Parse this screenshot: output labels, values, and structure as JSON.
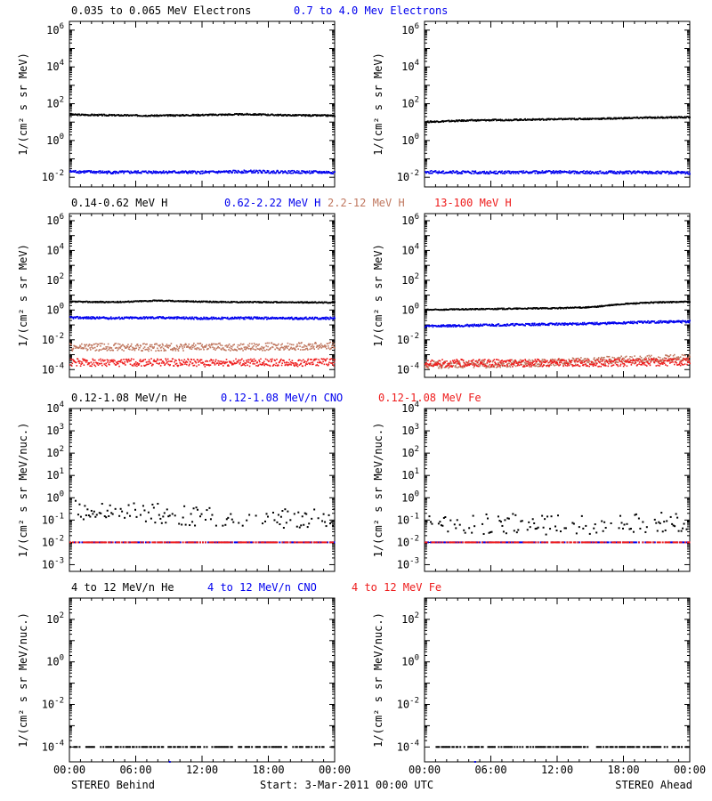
{
  "colors": {
    "black": "#000000",
    "blue": "#0000ee",
    "tan": "#c07860",
    "red": "#ee1c1c"
  },
  "footer": {
    "left": "STEREO Behind",
    "center": "Start:  3-Mar-2011 00:00 UTC",
    "right": "STEREO Ahead"
  },
  "chart_data": [
    {
      "type": "scatter",
      "panel": "electrons-behind",
      "ylabel": "1/(cm² s sr MeV)",
      "ylim": [
        0.003,
        3000000
      ],
      "log": true,
      "yticks": [
        "10^-2",
        "10^0",
        "10^2",
        "10^4",
        "10^6"
      ],
      "xticks": [
        "00:00",
        "06:00",
        "12:00",
        "18:00",
        "00:00"
      ],
      "show_xticks": false,
      "series": [
        {
          "name": "0.035 to 0.065 MeV Electrons",
          "color": "black",
          "x": [
            0,
            4,
            8,
            12,
            16,
            20,
            24
          ],
          "y": [
            25,
            23,
            22,
            24,
            26,
            23,
            22
          ]
        },
        {
          "name": "0.7 to 4.0 Mev Electrons",
          "color": "blue",
          "x": [
            0,
            4,
            8,
            12,
            16,
            20,
            24
          ],
          "y": [
            0.02,
            0.018,
            0.019,
            0.018,
            0.02,
            0.019,
            0.018
          ]
        }
      ]
    },
    {
      "type": "scatter",
      "panel": "electrons-ahead",
      "ylabel": "1/(cm² s sr MeV)",
      "ylim": [
        0.003,
        3000000
      ],
      "log": true,
      "yticks": [
        "10^-2",
        "10^0",
        "10^2",
        "10^4",
        "10^6"
      ],
      "xticks": [
        "00:00",
        "06:00",
        "12:00",
        "18:00",
        "00:00"
      ],
      "show_xticks": false,
      "series": [
        {
          "name": "",
          "color": "black",
          "x": [
            0,
            4,
            8,
            12,
            16,
            20,
            24
          ],
          "y": [
            10,
            12,
            13,
            14,
            15,
            17,
            18
          ]
        },
        {
          "name": "",
          "color": "blue",
          "x": [
            0,
            4,
            8,
            12,
            16,
            20,
            24
          ],
          "y": [
            0.019,
            0.018,
            0.018,
            0.019,
            0.018,
            0.018,
            0.017
          ]
        }
      ]
    },
    {
      "type": "scatter",
      "panel": "protons-behind",
      "ylabel": "1/(cm² s sr MeV)",
      "ylim": [
        3e-05,
        3000000
      ],
      "log": true,
      "yticks": [
        "10^-4",
        "10^-2",
        "10^0",
        "10^2",
        "10^4",
        "10^6"
      ],
      "xticks": [
        "00:00",
        "06:00",
        "12:00",
        "18:00",
        "00:00"
      ],
      "show_xticks": false,
      "series": [
        {
          "name": "0.14-0.62 MeV H",
          "color": "black",
          "x": [
            0,
            4,
            8,
            12,
            16,
            20,
            24
          ],
          "y": [
            3.5,
            3.3,
            4.2,
            3.5,
            3.3,
            3.2,
            3.1
          ]
        },
        {
          "name": "0.62-2.22 MeV H",
          "color": "blue",
          "x": [
            0,
            4,
            8,
            12,
            16,
            20,
            24
          ],
          "y": [
            0.3,
            0.28,
            0.3,
            0.27,
            0.28,
            0.27,
            0.27
          ]
        },
        {
          "name": "2.2-12 MeV H",
          "color": "tan",
          "x": [
            0,
            4,
            8,
            12,
            16,
            20,
            24
          ],
          "y": [
            0.003,
            0.0032,
            0.003,
            0.0033,
            0.0032,
            0.0035,
            0.004
          ]
        },
        {
          "name": "13-100 MeV H",
          "color": "red",
          "x": [
            0,
            4,
            8,
            12,
            16,
            20,
            24
          ],
          "y": [
            0.0003,
            0.00028,
            0.0003,
            0.00027,
            0.00029,
            0.00028,
            0.0003
          ]
        }
      ]
    },
    {
      "type": "scatter",
      "panel": "protons-ahead",
      "ylabel": "1/(cm² s sr MeV)",
      "ylim": [
        3e-05,
        3000000
      ],
      "log": true,
      "yticks": [
        "10^-4",
        "10^-2",
        "10^0",
        "10^2",
        "10^4",
        "10^6"
      ],
      "xticks": [
        "00:00",
        "06:00",
        "12:00",
        "18:00",
        "00:00"
      ],
      "show_xticks": false,
      "series": [
        {
          "name": "",
          "color": "black",
          "x": [
            0,
            4,
            8,
            12,
            15,
            18,
            21,
            24
          ],
          "y": [
            1.0,
            1.1,
            1.2,
            1.3,
            1.5,
            2.5,
            3.2,
            3.5
          ]
        },
        {
          "name": "",
          "color": "blue",
          "x": [
            0,
            4,
            8,
            12,
            16,
            20,
            24
          ],
          "y": [
            0.08,
            0.09,
            0.1,
            0.11,
            0.12,
            0.15,
            0.16
          ]
        },
        {
          "name": "",
          "color": "tan",
          "x": [
            0,
            4,
            8,
            12,
            16,
            20,
            24
          ],
          "y": [
            0.0002,
            0.00022,
            0.00025,
            0.0003,
            0.0004,
            0.0005,
            0.0006
          ]
        },
        {
          "name": "",
          "color": "red",
          "x": [
            0,
            4,
            8,
            12,
            16,
            20,
            24
          ],
          "y": [
            0.00025,
            0.00027,
            0.00026,
            0.00028,
            0.00027,
            0.0003,
            0.00032
          ]
        }
      ]
    },
    {
      "type": "scatter",
      "panel": "heavy-low-behind",
      "ylabel": "1/(cm² s sr MeV/nuc.)",
      "ylim": [
        0.0005,
        10000
      ],
      "log": true,
      "yticks": [
        "10^-3",
        "10^-2",
        "10^-1",
        "10^0",
        "10^1",
        "10^2",
        "10^3",
        "10^4"
      ],
      "xticks": [
        "00:00",
        "06:00",
        "12:00",
        "18:00",
        "00:00"
      ],
      "show_xticks": false,
      "series": [
        {
          "name": "0.12-1.08 MeV/n He",
          "color": "black",
          "x": [
            0,
            4,
            8,
            12,
            16,
            20,
            24
          ],
          "y": [
            0.3,
            0.25,
            0.2,
            0.15,
            0.12,
            0.12,
            0.15
          ]
        },
        {
          "name": "0.12-1.08 MeV/n CNO",
          "color": "blue",
          "x": [
            0,
            4,
            8,
            12,
            16,
            20,
            24
          ],
          "y": [
            0.01,
            0.01,
            0.01,
            0.01,
            0.01,
            0.01,
            0.01
          ]
        },
        {
          "name": "0.12-1.08 MeV Fe",
          "color": "red",
          "x": [
            0,
            4,
            8,
            12,
            16,
            20,
            24
          ],
          "y": [
            0.01,
            0.01,
            0.01,
            0.01,
            0.01,
            0.01,
            0.01
          ]
        }
      ]
    },
    {
      "type": "scatter",
      "panel": "heavy-low-ahead",
      "ylabel": "1/(cm² s sr MeV/nuc.)",
      "ylim": [
        0.0005,
        10000
      ],
      "log": true,
      "yticks": [
        "10^-3",
        "10^-2",
        "10^-1",
        "10^0",
        "10^1",
        "10^2",
        "10^3",
        "10^4"
      ],
      "xticks": [
        "00:00",
        "06:00",
        "12:00",
        "18:00",
        "00:00"
      ],
      "show_xticks": false,
      "series": [
        {
          "name": "",
          "color": "black",
          "x": [
            0,
            4,
            8,
            12,
            16,
            20,
            24
          ],
          "y": [
            0.06,
            0.06,
            0.07,
            0.06,
            0.07,
            0.08,
            0.08
          ]
        },
        {
          "name": "",
          "color": "blue",
          "x": [
            0,
            4,
            8,
            12,
            16,
            20,
            24
          ],
          "y": [
            0.01,
            0.01,
            0.01,
            0.01,
            0.01,
            0.01,
            0.01
          ]
        },
        {
          "name": "",
          "color": "red",
          "x": [
            0,
            6,
            12,
            18,
            24
          ],
          "y": [
            0.01,
            0.01,
            0.01,
            0.01,
            0.01
          ]
        }
      ]
    },
    {
      "type": "scatter",
      "panel": "heavy-high-behind",
      "ylabel": "1/(cm² s sr MeV/nuc.)",
      "ylim": [
        2e-05,
        1000
      ],
      "log": true,
      "yticks": [
        "10^-4",
        "10^-2",
        "10^0",
        "10^2"
      ],
      "xticks": [
        "00:00",
        "06:00",
        "12:00",
        "18:00",
        "00:00"
      ],
      "show_xticks": true,
      "series": [
        {
          "name": "4 to 12 MeV/n He",
          "color": "black",
          "x": [
            0,
            4,
            8,
            12,
            16,
            20,
            24
          ],
          "y": [
            0.0001,
            0.0001,
            0.0001,
            0.0001,
            0.0001,
            0.0001,
            0.0001
          ]
        },
        {
          "name": "4 to 12 MeV/n CNO",
          "color": "blue",
          "x": [
            9
          ],
          "y": [
            2e-05
          ]
        },
        {
          "name": "4 to 12 MeV Fe",
          "color": "red",
          "x": [],
          "y": []
        }
      ]
    },
    {
      "type": "scatter",
      "panel": "heavy-high-ahead",
      "ylabel": "1/(cm² s sr MeV/nuc.)",
      "ylim": [
        2e-05,
        1000
      ],
      "log": true,
      "yticks": [
        "10^-4",
        "10^-2",
        "10^0",
        "10^2"
      ],
      "xticks": [
        "00:00",
        "06:00",
        "12:00",
        "18:00",
        "00:00"
      ],
      "show_xticks": true,
      "series": [
        {
          "name": "",
          "color": "black",
          "x": [
            1,
            3,
            5,
            8,
            12,
            16,
            19,
            22,
            24
          ],
          "y": [
            0.0001,
            0.0001,
            0.0001,
            0.0001,
            0.0001,
            0.0001,
            0.0001,
            0.0001,
            0.0001
          ]
        },
        {
          "name": "",
          "color": "blue",
          "x": [
            4.5
          ],
          "y": [
            2e-05
          ]
        },
        {
          "name": "",
          "color": "red",
          "x": [],
          "y": []
        }
      ]
    }
  ]
}
